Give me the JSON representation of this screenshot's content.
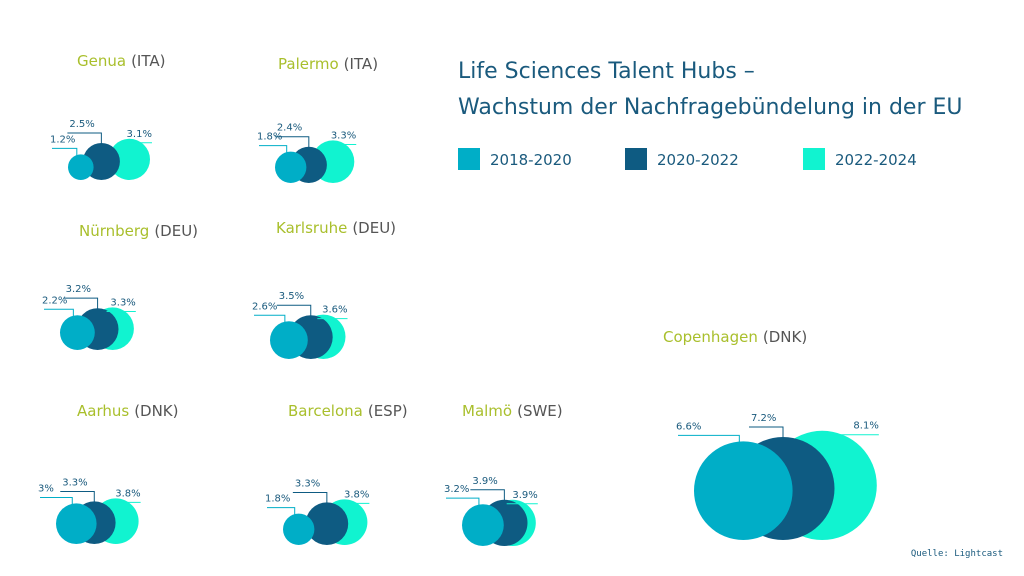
{
  "chart_data": {
    "type": "bubble",
    "title": [
      "Life Sciences Talent Hubs –",
      "Wachstum der Nachfragebündelung in der EU"
    ],
    "legend": [
      {
        "label": "2018-2020",
        "color": "#00aec7"
      },
      {
        "label": "2020-2022",
        "color": "#0e5b82"
      },
      {
        "label": "2022-2024",
        "color": "#11f3d0"
      }
    ],
    "source": "Quelle: Lightcast",
    "cities": [
      {
        "name": "Genua",
        "country": "(ITA)",
        "values": [
          1.2,
          2.5,
          3.1
        ],
        "labels": [
          "1.2%",
          "2.5%",
          "3.1%"
        ]
      },
      {
        "name": "Palermo",
        "country": "(ITA)",
        "values": [
          1.8,
          2.4,
          3.3
        ],
        "labels": [
          "1.8%",
          "2.4%",
          "3.3%"
        ]
      },
      {
        "name": "Nürnberg",
        "country": "(DEU)",
        "values": [
          2.2,
          3.2,
          3.3
        ],
        "labels": [
          "2.2%",
          "3.2%",
          "3.3%"
        ]
      },
      {
        "name": "Karlsruhe",
        "country": "(DEU)",
        "values": [
          2.6,
          3.5,
          3.6
        ],
        "labels": [
          "2.6%",
          "3.5%",
          "3.6%"
        ]
      },
      {
        "name": "Aarhus",
        "country": "(DNK)",
        "values": [
          3.0,
          3.3,
          3.8
        ],
        "labels": [
          "3%",
          "3.3%",
          "3.8%"
        ]
      },
      {
        "name": "Barcelona",
        "country": "(ESP)",
        "values": [
          1.8,
          3.3,
          3.8
        ],
        "labels": [
          "1.8%",
          "3.3%",
          "3.8%"
        ]
      },
      {
        "name": "Malmö",
        "country": "(SWE)",
        "values": [
          3.2,
          3.9,
          3.9
        ],
        "labels": [
          "3.2%",
          "3.9%",
          "3.9%"
        ]
      },
      {
        "name": "Copenhagen",
        "country": "(DNK)",
        "values": [
          6.6,
          7.2,
          8.1
        ],
        "labels": [
          "6.6%",
          "7.2%",
          "8.1%"
        ]
      }
    ]
  }
}
